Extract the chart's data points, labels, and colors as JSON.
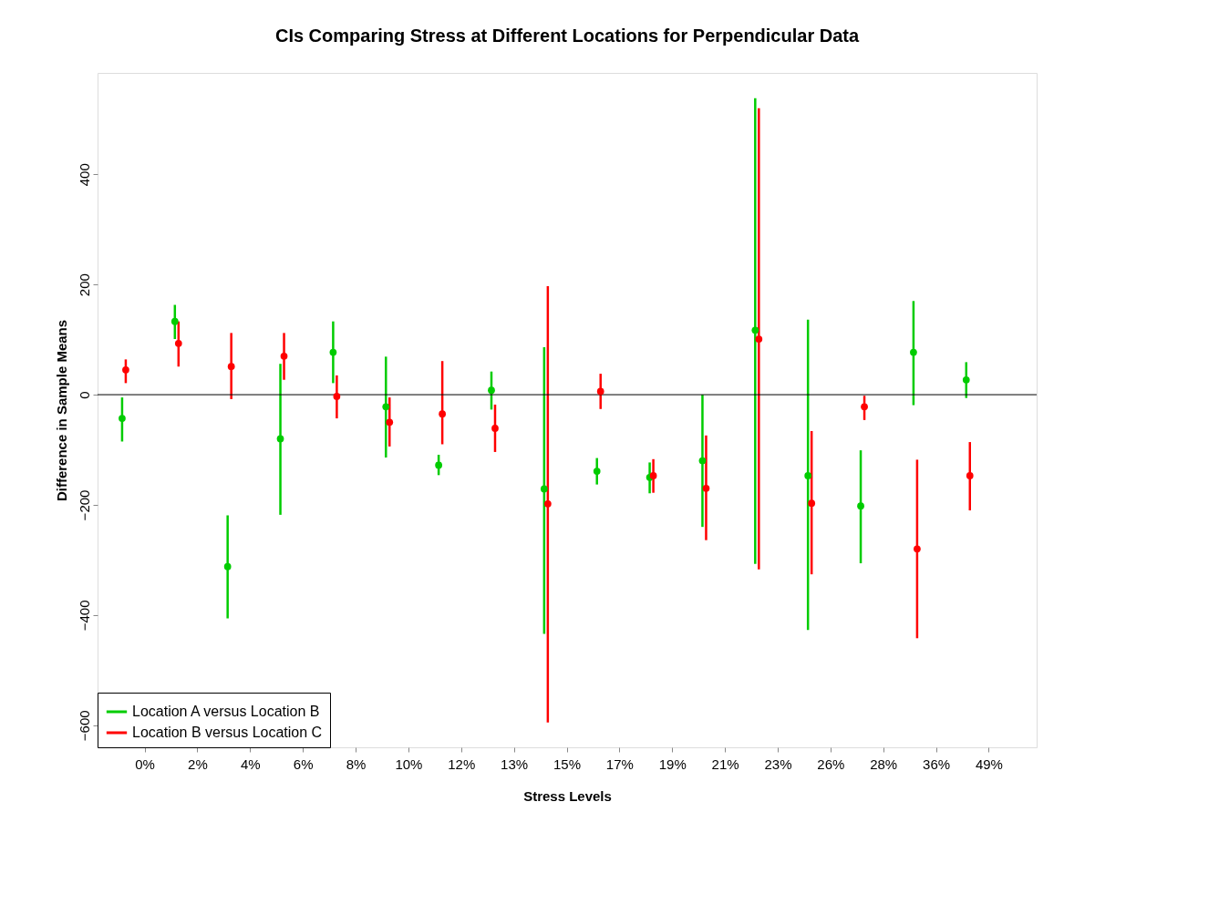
{
  "chart_data": {
    "type": "scatter",
    "title": "CIs Comparing Stress at Different Locations for Perpendicular Data",
    "xlabel": "Stress Levels",
    "ylabel": "Difference in Sample Means",
    "categories": [
      "0%",
      "2%",
      "4%",
      "6%",
      "8%",
      "10%",
      "12%",
      "13%",
      "15%",
      "17%",
      "19%",
      "21%",
      "23%",
      "26%",
      "28%",
      "36%",
      "49%"
    ],
    "series": [
      {
        "name": "Location A versus Location B",
        "color": "#00cc00",
        "values": [
          -43,
          133,
          -312,
          -80,
          77,
          -22,
          -128,
          8,
          -171,
          -139,
          -150,
          -120,
          117,
          -147,
          -202,
          77,
          27
        ],
        "errors": [
          [
            -85,
            -5
          ],
          [
            101,
            163
          ],
          [
            -406,
            -219
          ],
          [
            -218,
            56
          ],
          [
            21,
            133
          ],
          [
            -114,
            69
          ],
          [
            -146,
            -109
          ],
          [
            -27,
            42
          ],
          [
            -434,
            86
          ],
          [
            -163,
            -115
          ],
          [
            -179,
            -123
          ],
          [
            -240,
            0
          ],
          [
            -307,
            538
          ],
          [
            -427,
            136
          ],
          [
            -306,
            -101
          ],
          [
            -19,
            170
          ],
          [
            -6,
            59
          ]
        ]
      },
      {
        "name": "Location B versus Location C",
        "color": "#ff0000",
        "values": [
          45,
          93,
          51,
          70,
          -3,
          -50,
          -35,
          -61,
          -198,
          6,
          -147,
          -170,
          101,
          -197,
          -22,
          -280,
          -147
        ],
        "errors": [
          [
            21,
            64
          ],
          [
            51,
            133
          ],
          [
            -8,
            112
          ],
          [
            27,
            112
          ],
          [
            -43,
            35
          ],
          [
            -94,
            -5
          ],
          [
            -90,
            61
          ],
          [
            -104,
            -18
          ],
          [
            -595,
            197
          ],
          [
            -26,
            38
          ],
          [
            -178,
            -117
          ],
          [
            -264,
            -74
          ],
          [
            -317,
            520
          ],
          [
            -326,
            -66
          ],
          [
            -46,
            -2
          ],
          [
            -442,
            -118
          ],
          [
            -210,
            -86
          ]
        ]
      }
    ],
    "ylim": [
      -640,
      584
    ],
    "yticks": [
      -600,
      -400,
      -200,
      0,
      200,
      400
    ],
    "ref_lines": [
      {
        "axis": "y",
        "value": 0,
        "color": "#000000"
      }
    ],
    "marker": "circle",
    "grid": false,
    "legend": "bottom left"
  }
}
